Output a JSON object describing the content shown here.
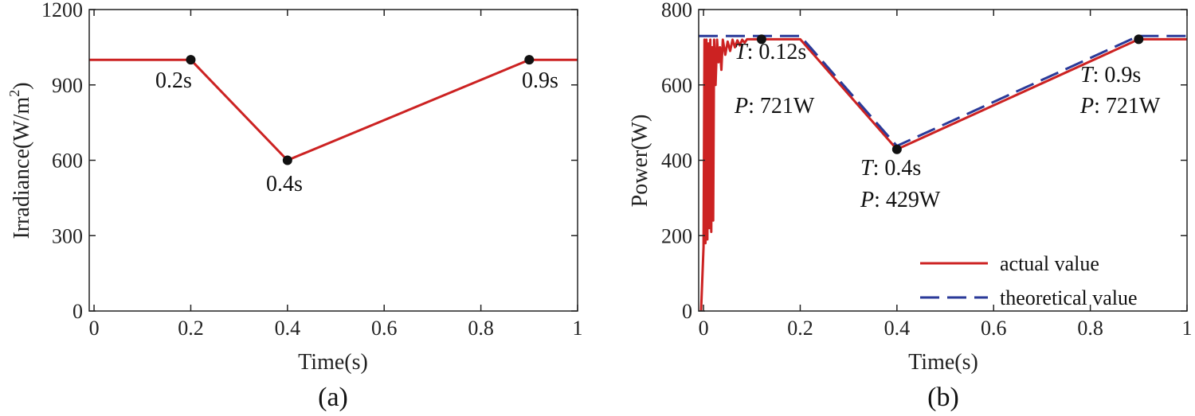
{
  "colors": {
    "actual": "#cc2222",
    "theoretical": "#2a3a99",
    "marker": "#111111"
  },
  "chart_data": [
    {
      "type": "line",
      "panel_label": "(a)",
      "xlabel": "Time(s)",
      "ylabel": "Irradiance(W/m",
      "ylabel_sup": "2",
      "ylabel_close": ")",
      "xlim": [
        -0.01,
        1
      ],
      "ylim": [
        0,
        1200
      ],
      "xticks": [
        0,
        0.2,
        0.4,
        0.6,
        0.8,
        1
      ],
      "xtick_labels": [
        "0",
        "0.2",
        "0.4",
        "0.6",
        "0.8",
        "1"
      ],
      "yticks": [
        0,
        300,
        600,
        900,
        1200
      ],
      "ytick_labels": [
        "0",
        "300",
        "600",
        "900",
        "1200"
      ],
      "series": [
        {
          "name": "irradiance",
          "x": [
            -0.01,
            0.2,
            0.4,
            0.9,
            1.0
          ],
          "y": [
            1000,
            1000,
            600,
            1000,
            1000
          ]
        }
      ],
      "markers": [
        {
          "x": 0.2,
          "y": 1000,
          "label": "0.2s"
        },
        {
          "x": 0.4,
          "y": 600,
          "label": "0.4s"
        },
        {
          "x": 0.9,
          "y": 1000,
          "label": "0.9s"
        }
      ]
    },
    {
      "type": "line",
      "panel_label": "(b)",
      "xlabel": "Time(s)",
      "ylabel": "Power(W)",
      "xlim": [
        -0.01,
        1
      ],
      "ylim": [
        0,
        800
      ],
      "xticks": [
        0,
        0.2,
        0.4,
        0.6,
        0.8,
        1
      ],
      "xtick_labels": [
        "0",
        "0.2",
        "0.4",
        "0.6",
        "0.8",
        "1"
      ],
      "yticks": [
        0,
        200,
        400,
        600,
        800
      ],
      "ytick_labels": [
        "0",
        "200",
        "400",
        "600",
        "800"
      ],
      "legend": {
        "position": "bottom-right",
        "entries": [
          "actual value",
          "theoretical value"
        ]
      },
      "series": [
        {
          "name": "actual value",
          "x": [
            -0.005,
            0.0,
            0.002,
            0.004,
            0.006,
            0.008,
            0.01,
            0.012,
            0.014,
            0.016,
            0.018,
            0.02,
            0.022,
            0.025,
            0.028,
            0.031,
            0.034,
            0.037,
            0.04,
            0.045,
            0.05,
            0.055,
            0.06,
            0.065,
            0.07,
            0.075,
            0.08,
            0.085,
            0.09,
            0.1,
            0.12,
            0.2,
            0.4,
            0.9,
            1.0
          ],
          "y": [
            0,
            170,
            720,
            180,
            720,
            190,
            710,
            220,
            720,
            210,
            700,
            240,
            720,
            600,
            720,
            660,
            700,
            640,
            720,
            680,
            715,
            690,
            720,
            700,
            718,
            705,
            720,
            712,
            721,
            721,
            721,
            721,
            429,
            721,
            721
          ]
        },
        {
          "name": "theoretical value",
          "x": [
            -0.01,
            0.2,
            0.4,
            0.9,
            1.0
          ],
          "y": [
            730,
            730,
            438,
            730,
            730
          ]
        }
      ],
      "markers": [
        {
          "x": 0.12,
          "y": 721,
          "t_label": "T",
          "t_value": ": 0.12s",
          "p_label": "P",
          "p_value": ": 721W"
        },
        {
          "x": 0.4,
          "y": 429,
          "t_label": "T",
          "t_value": ": 0.4s",
          "p_label": "P",
          "p_value": ": 429W"
        },
        {
          "x": 0.9,
          "y": 721,
          "t_label": "T",
          "t_value": ": 0.9s",
          "p_label": "P",
          "p_value": ": 721W"
        }
      ]
    }
  ]
}
